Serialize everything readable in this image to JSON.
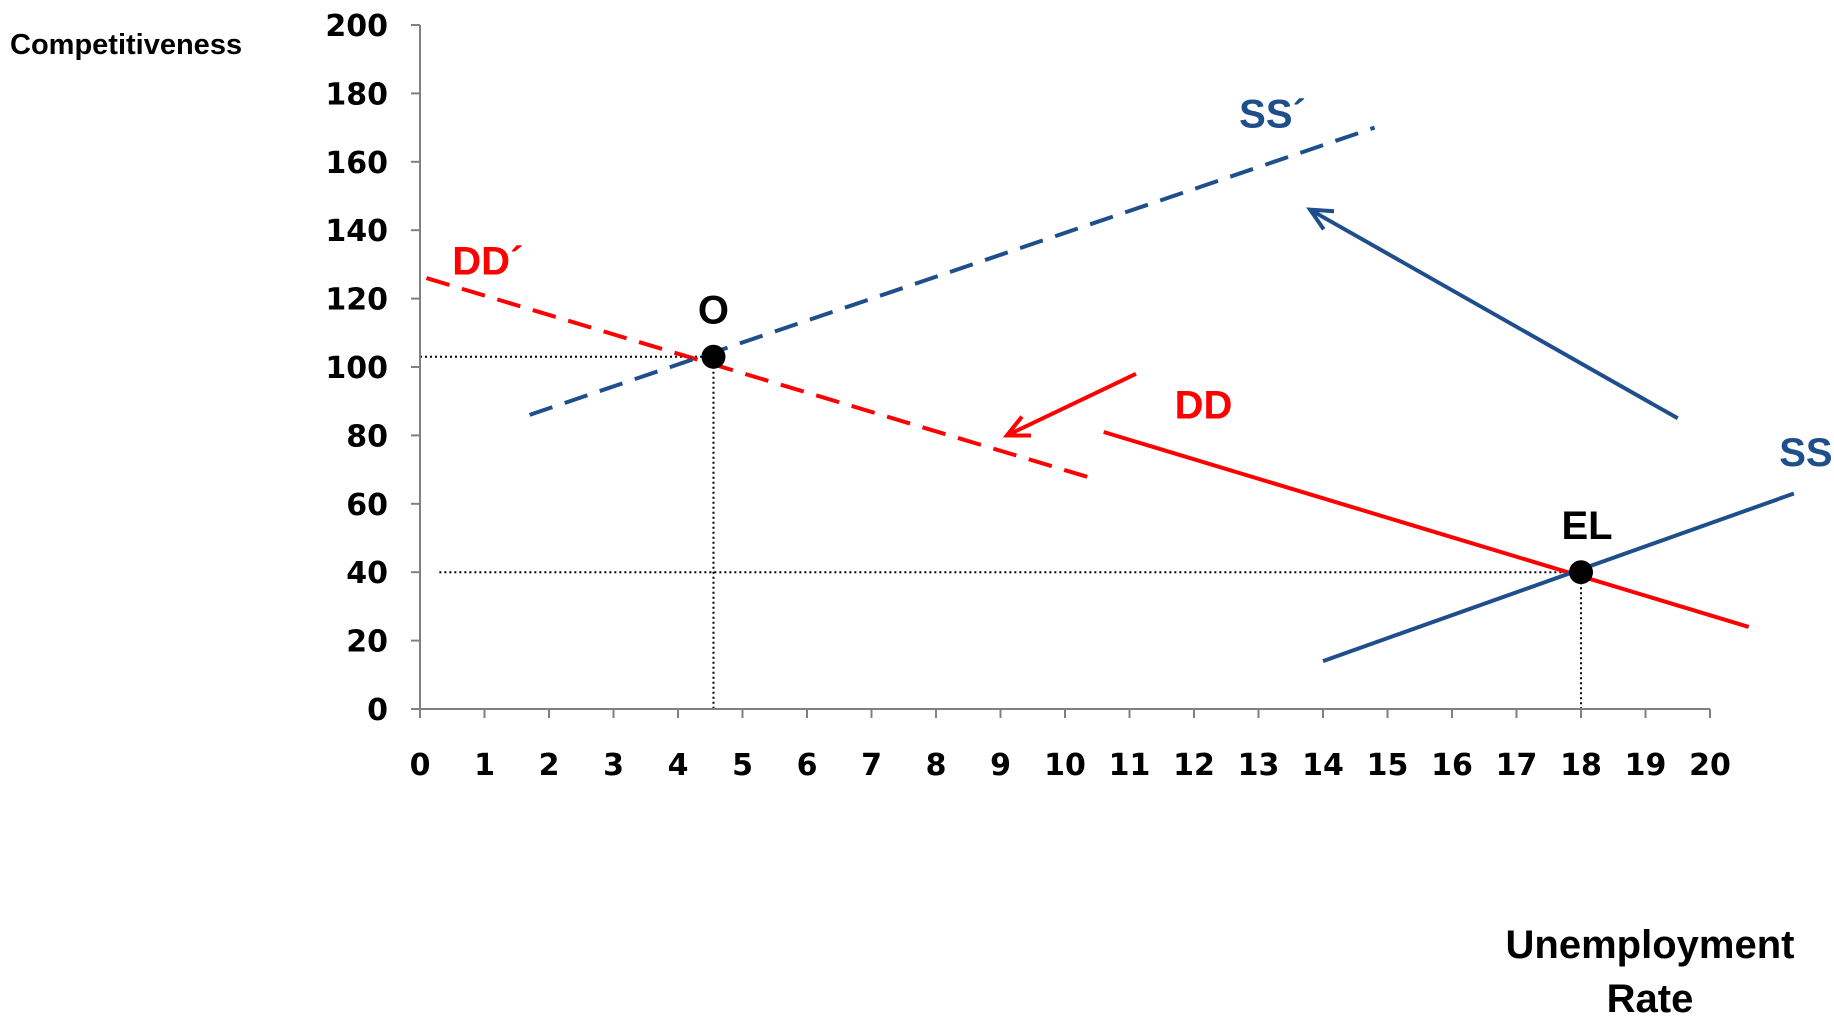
{
  "chart_data": {
    "type": "line",
    "xlabel_lines": [
      "Unemployment",
      "Rate"
    ],
    "ylabel": "Competitiveness",
    "xlim": [
      0,
      20
    ],
    "ylim": [
      0,
      200
    ],
    "x_ticks": [
      0,
      1,
      2,
      3,
      4,
      5,
      6,
      7,
      8,
      9,
      10,
      11,
      12,
      13,
      14,
      15,
      16,
      17,
      18,
      19,
      20
    ],
    "y_ticks": [
      0,
      20,
      40,
      60,
      80,
      100,
      120,
      140,
      160,
      180,
      200
    ],
    "grid": false,
    "series": [
      {
        "name": "DD",
        "style": "solid",
        "color": "#ff0000",
        "x": [
          10.6,
          20.6
        ],
        "y": [
          81,
          24
        ]
      },
      {
        "name": "DD´",
        "style": "dashed",
        "color": "#ff0000",
        "x": [
          0.1,
          10.5
        ],
        "y": [
          126,
          67
        ]
      },
      {
        "name": "SS",
        "style": "solid",
        "color": "#1f4e8c",
        "x": [
          14,
          21.3
        ],
        "y": [
          14,
          63
        ]
      },
      {
        "name": "SS´",
        "style": "dashed",
        "color": "#1f4e8c",
        "x": [
          1.7,
          14.8
        ],
        "y": [
          86,
          170
        ]
      }
    ],
    "points": [
      {
        "label": "O",
        "x": 4.55,
        "y": 103
      },
      {
        "label": "EL",
        "x": 18,
        "y": 40
      }
    ],
    "arrows": [
      {
        "color": "#1f4e8c",
        "from": [
          19.5,
          85
        ],
        "to": [
          13.8,
          146
        ]
      },
      {
        "color": "#ff0000",
        "from": [
          11.1,
          98
        ],
        "to": [
          9.1,
          80
        ]
      }
    ],
    "reference_lines": [
      {
        "from": [
          0,
          103
        ],
        "to": [
          4.55,
          103
        ]
      },
      {
        "from": [
          4.55,
          103
        ],
        "to": [
          4.55,
          0
        ]
      },
      {
        "from": [
          0.3,
          40
        ],
        "to": [
          18,
          40
        ]
      },
      {
        "from": [
          18,
          40
        ],
        "to": [
          18,
          0
        ]
      }
    ]
  }
}
